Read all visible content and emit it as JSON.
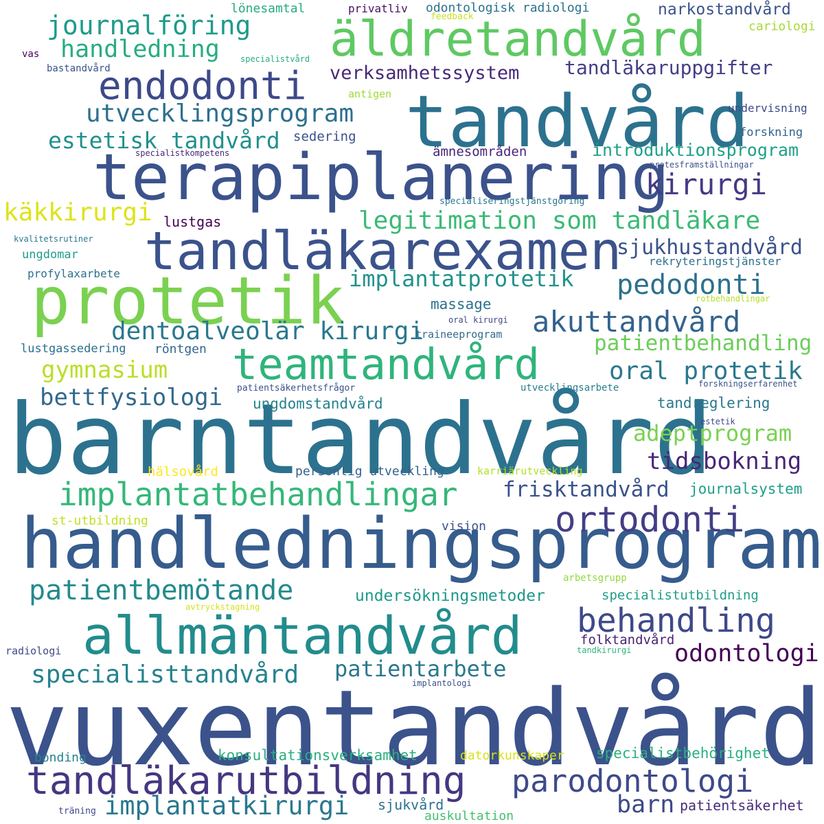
{
  "words": [
    {
      "text": "vuxentandvård",
      "color": "#3b528b"
    },
    {
      "text": "barntandvård",
      "color": "#2c728e"
    },
    {
      "text": "handledningsprogram",
      "color": "#365c8d"
    },
    {
      "text": "tandvård",
      "color": "#2c728e"
    },
    {
      "text": "terapiplanering",
      "color": "#3b528b"
    },
    {
      "text": "protetik",
      "color": "#7ad151"
    },
    {
      "text": "tandläkarexamen",
      "color": "#3b528b"
    },
    {
      "text": "allmäntandvård",
      "color": "#228c8d"
    },
    {
      "text": "äldretandvård",
      "color": "#5ec962"
    },
    {
      "text": "teamtandvård",
      "color": "#2fb47c"
    },
    {
      "text": "tandläkarutbildning",
      "color": "#453781"
    },
    {
      "text": "endodonti",
      "color": "#3e4989"
    },
    {
      "text": "implantatbehandlingar",
      "color": "#35b779"
    },
    {
      "text": "ortodonti",
      "color": "#433e85"
    },
    {
      "text": "parodontologi",
      "color": "#3e4a89"
    },
    {
      "text": "behandling",
      "color": "#3e4989"
    },
    {
      "text": "patientbemötande",
      "color": "#238a8d"
    },
    {
      "text": "akuttandvård",
      "color": "#33638d"
    },
    {
      "text": "journalföring",
      "color": "#1e9b8a"
    },
    {
      "text": "utvecklingsprogram",
      "color": "#2d708e"
    },
    {
      "text": "pedodonti",
      "color": "#2d708e"
    },
    {
      "text": "legitimation som tandläkare",
      "color": "#3aba76"
    },
    {
      "text": "dentoalveolär kirurgi",
      "color": "#2a788e"
    },
    {
      "text": "specialisttandvård",
      "color": "#26828e"
    },
    {
      "text": "implantatkirurgi",
      "color": "#2a788e"
    },
    {
      "text": "kirurgi",
      "color": "#443a83"
    },
    {
      "text": "odontologi",
      "color": "#440154"
    },
    {
      "text": "handledning",
      "color": "#27ad81"
    },
    {
      "text": "estetisk tandvård",
      "color": "#21908d"
    },
    {
      "text": "käkkirurgi",
      "color": "#dde318"
    },
    {
      "text": "implantatprotetik",
      "color": "#20928c"
    },
    {
      "text": "oral protetik",
      "color": "#2a788e"
    },
    {
      "text": "patientbehandling",
      "color": "#6ccd5a"
    },
    {
      "text": "gymnasium",
      "color": "#bade28"
    },
    {
      "text": "bettfysiologi",
      "color": "#31688e"
    },
    {
      "text": "adeptprogram",
      "color": "#7ad151"
    },
    {
      "text": "tidsbokning",
      "color": "#482677"
    },
    {
      "text": "frisktandvård",
      "color": "#3b528b"
    },
    {
      "text": "patientarbete",
      "color": "#2a788e"
    },
    {
      "text": "barn",
      "color": "#3e4989"
    },
    {
      "text": "tandläkaruppgifter",
      "color": "#433e85"
    },
    {
      "text": "verksamhetssystem",
      "color": "#482878"
    },
    {
      "text": "sjukhustandvård",
      "color": "#3b528b"
    },
    {
      "text": "introduktionsprogram",
      "color": "#1fa088"
    },
    {
      "text": "undersökningsmetoder",
      "color": "#1f988b"
    },
    {
      "text": "narkostandvård",
      "color": "#3b528b"
    },
    {
      "text": "konsultationsverksamhet",
      "color": "#29af7f"
    },
    {
      "text": "specialistbehörighet",
      "color": "#2ab07f"
    },
    {
      "text": "journalsystem",
      "color": "#1f9e89"
    },
    {
      "text": "folktandvård",
      "color": "#482475"
    },
    {
      "text": "ungdomstandvård",
      "color": "#26828e"
    },
    {
      "text": "tandreglering",
      "color": "#2a788e"
    },
    {
      "text": "massage",
      "color": "#2c728e"
    },
    {
      "text": "lustgas",
      "color": "#440154"
    },
    {
      "text": "specialistutbildning",
      "color": "#1f9e89"
    },
    {
      "text": "patientsäkerhet",
      "color": "#472d7b"
    },
    {
      "text": "sjukvård",
      "color": "#2c728e"
    },
    {
      "text": "personlig utveckling",
      "color": "#33638d"
    },
    {
      "text": "odontologisk radiologi",
      "color": "#2c728e"
    },
    {
      "text": "lönesamtal",
      "color": "#25ab82"
    },
    {
      "text": "privatliv",
      "color": "#471063"
    },
    {
      "text": "cariologi",
      "color": "#a5db36"
    },
    {
      "text": "sedering",
      "color": "#3b528b"
    },
    {
      "text": "ämnesområden",
      "color": "#482677"
    },
    {
      "text": "forskning",
      "color": "#33638d"
    },
    {
      "text": "undervisning",
      "color": "#3e4a89"
    },
    {
      "text": "röntgen",
      "color": "#31688e"
    },
    {
      "text": "lustgassedering",
      "color": "#2d708e"
    },
    {
      "text": "ungdomar",
      "color": "#1f9e89"
    },
    {
      "text": "profylaxarbete",
      "color": "#2d708e"
    },
    {
      "text": "hälsovård",
      "color": "#fde725"
    },
    {
      "text": "st-utbildning",
      "color": "#c2df23"
    },
    {
      "text": "vision",
      "color": "#3b528b"
    },
    {
      "text": "auskultation",
      "color": "#44bf70"
    },
    {
      "text": "bonding",
      "color": "#26828e"
    },
    {
      "text": "datorkunskaper",
      "color": "#d8e219"
    },
    {
      "text": "radiologi",
      "color": "#3e4989"
    },
    {
      "text": "rekryteringstjänster",
      "color": "#2d708e"
    },
    {
      "text": "utvecklingsarbete",
      "color": "#287d8e"
    },
    {
      "text": "karriärutveckling",
      "color": "#b5de2b"
    },
    {
      "text": "arbetsgrupp",
      "color": "#95d840"
    },
    {
      "text": "bastandvård",
      "color": "#3b528b"
    },
    {
      "text": "antigen",
      "color": "#a0da39"
    },
    {
      "text": "träning",
      "color": "#3e4989"
    },
    {
      "text": "vas",
      "color": "#440154"
    },
    {
      "text": "feedback",
      "color": "#c8e020"
    },
    {
      "text": "specialistvård",
      "color": "#29af7f"
    },
    {
      "text": "specialistkompetens",
      "color": "#482878"
    },
    {
      "text": "protesframställningar",
      "color": "#3b528b"
    },
    {
      "text": "specialiseringstjänstgöring",
      "color": "#2a788e"
    },
    {
      "text": "kvalitetsrutiner",
      "color": "#2a788e"
    },
    {
      "text": "rotbehandlingar",
      "color": "#b8de29"
    },
    {
      "text": "oral kirurgi",
      "color": "#3e4989"
    },
    {
      "text": "traineeprogram",
      "color": "#31688e"
    },
    {
      "text": "patientsäkerhetsfrågor",
      "color": "#3b528b"
    },
    {
      "text": "forskningserfarenhet",
      "color": "#3b528b"
    },
    {
      "text": "estetik",
      "color": "#3e4989"
    },
    {
      "text": "avtryckstagning",
      "color": "#d5e21a"
    },
    {
      "text": "tandkirurgi",
      "color": "#2fb47c"
    },
    {
      "text": "implantologi",
      "color": "#3b528b"
    }
  ]
}
